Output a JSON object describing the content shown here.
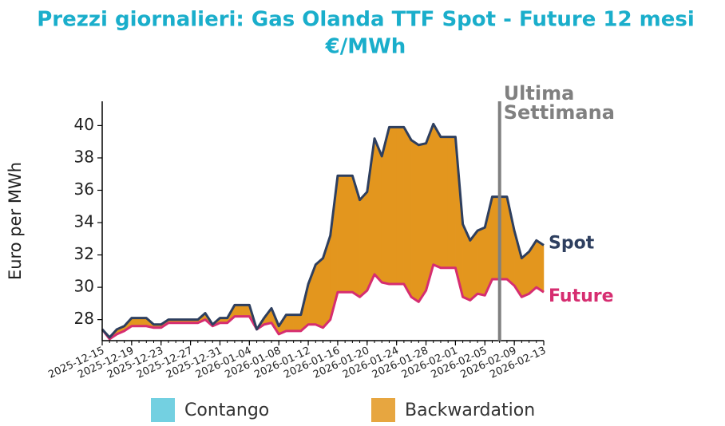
{
  "chart_data": {
    "type": "line",
    "title": "Prezzi giornalieri: Gas Olanda TTF Spot - Future 12 mesi",
    "subtitle": "€/MWh",
    "y_label": "Euro per MWh",
    "x": [
      "2025-12-15",
      "2025-12-16",
      "2025-12-17",
      "2025-12-18",
      "2025-12-19",
      "2025-12-20",
      "2025-12-21",
      "2025-12-22",
      "2025-12-23",
      "2025-12-24",
      "2025-12-25",
      "2025-12-26",
      "2025-12-27",
      "2025-12-28",
      "2025-12-29",
      "2025-12-30",
      "2025-12-31",
      "2026-01-01",
      "2026-01-02",
      "2026-01-03",
      "2026-01-04",
      "2026-01-05",
      "2026-01-06",
      "2026-01-07",
      "2026-01-08",
      "2026-01-09",
      "2026-01-10",
      "2026-01-11",
      "2026-01-12",
      "2026-01-13",
      "2026-01-14",
      "2026-01-15",
      "2026-01-16",
      "2026-01-17",
      "2026-01-18",
      "2026-01-19",
      "2026-01-20",
      "2026-01-21",
      "2026-01-22",
      "2026-01-23",
      "2026-01-24",
      "2026-01-25",
      "2026-01-26",
      "2026-01-27",
      "2026-01-28",
      "2026-01-29",
      "2026-01-30",
      "2026-01-31",
      "2026-02-01",
      "2026-02-02",
      "2026-02-03",
      "2026-02-04",
      "2026-02-05",
      "2026-02-06",
      "2026-02-07",
      "2026-02-08",
      "2026-02-09",
      "2026-02-10",
      "2026-02-11",
      "2026-02-12",
      "2026-02-13"
    ],
    "series": [
      {
        "name": "Spot",
        "color": "#2e3f5f",
        "values": [
          27.4,
          26.9,
          27.4,
          27.6,
          28.1,
          28.1,
          28.1,
          27.7,
          27.7,
          28.0,
          28.0,
          28.0,
          28.0,
          28.0,
          28.4,
          27.7,
          28.1,
          28.1,
          28.9,
          28.9,
          28.9,
          27.4,
          28.1,
          28.7,
          27.6,
          28.3,
          28.3,
          28.3,
          30.2,
          31.4,
          31.8,
          33.2,
          36.9,
          36.9,
          36.9,
          35.4,
          35.9,
          39.2,
          38.1,
          39.9,
          39.9,
          39.9,
          39.1,
          38.8,
          38.9,
          40.1,
          39.3,
          39.3,
          39.3,
          33.9,
          32.9,
          33.5,
          33.7,
          35.6,
          35.6,
          35.6,
          33.5,
          31.8,
          32.2,
          32.9,
          32.6
        ]
      },
      {
        "name": "Future",
        "color": "#d62d70",
        "values": [
          27.4,
          26.8,
          27.1,
          27.3,
          27.6,
          27.6,
          27.6,
          27.5,
          27.5,
          27.8,
          27.8,
          27.8,
          27.8,
          27.8,
          28.0,
          27.6,
          27.8,
          27.8,
          28.2,
          28.2,
          28.2,
          27.4,
          27.7,
          27.8,
          27.1,
          27.3,
          27.3,
          27.3,
          27.7,
          27.7,
          27.5,
          28.0,
          29.7,
          29.7,
          29.7,
          29.4,
          29.8,
          30.8,
          30.3,
          30.2,
          30.2,
          30.2,
          29.4,
          29.1,
          29.8,
          31.4,
          31.2,
          31.2,
          31.2,
          29.4,
          29.2,
          29.6,
          29.5,
          30.5,
          30.5,
          30.5,
          30.1,
          29.4,
          29.6,
          30.0,
          29.7
        ]
      }
    ],
    "legend": [
      {
        "name": "Contango",
        "color": "#5bc8dc"
      },
      {
        "name": "Backwardation",
        "color": "#e3961e"
      }
    ],
    "xticks": [
      "2025-12-15",
      "2025-12-19",
      "2025-12-23",
      "2025-12-27",
      "2025-12-31",
      "2026-01-04",
      "2026-01-08",
      "2026-01-12",
      "2026-01-16",
      "2026-01-20",
      "2026-01-24",
      "2026-01-28",
      "2026-02-01",
      "2026-02-05",
      "2026-02-09",
      "2026-02-13"
    ],
    "ylim": [
      26.7,
      41.5
    ],
    "yticks": [
      28,
      30,
      32,
      34,
      36,
      38,
      40
    ],
    "annotation": {
      "x": "2026-02-07",
      "lines": [
        "Ultima",
        "Settimana"
      ],
      "color": "#808080"
    }
  }
}
